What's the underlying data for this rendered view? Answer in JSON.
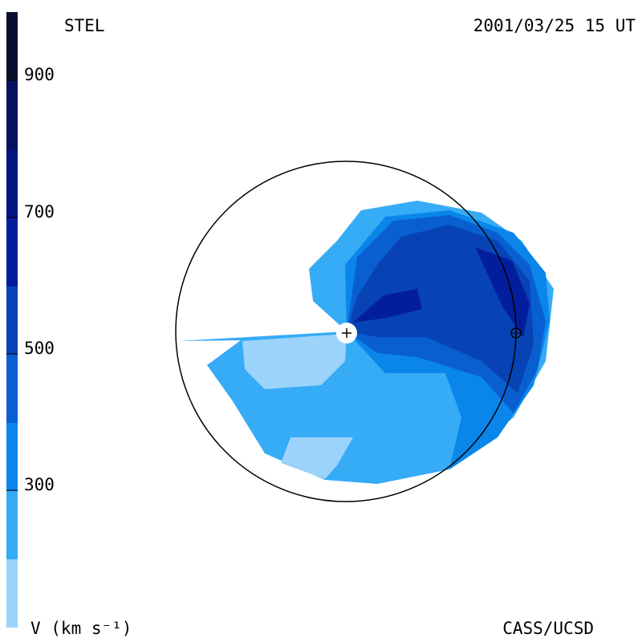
{
  "header": {
    "observatory": "STEL",
    "timestamp": "2001/03/25 15 UT"
  },
  "colorbar": {
    "ticks": [
      900,
      700,
      500,
      300
    ],
    "label": "V (km s⁻¹)"
  },
  "footer": {
    "credit": "CASS/UCSD"
  }
}
